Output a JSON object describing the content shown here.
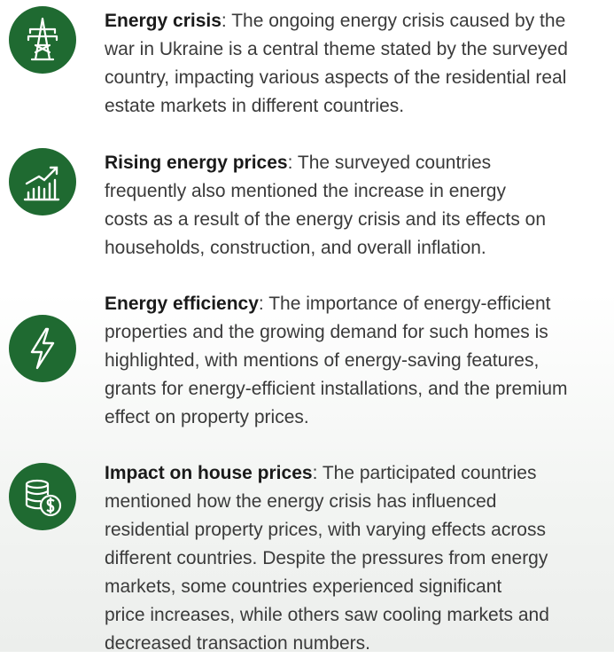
{
  "items": [
    {
      "title": "Energy crisis",
      "lines": [
        ": The ongoing energy crisis caused by the",
        "war in Ukraine is a central theme stated by the surveyed",
        "country, impacting various aspects of the residential real",
        "estate markets in different countries."
      ]
    },
    {
      "title": "Rising energy prices",
      "lines": [
        ": The surveyed countries",
        "frequently also mentioned the increase in energy",
        "costs as a result of the energy crisis and its effects on",
        "households, construction, and overall inflation."
      ]
    },
    {
      "title": "Energy efficiency",
      "lines": [
        ": The importance of energy-efficient",
        "properties and the growing demand for such homes is",
        "highlighted, with mentions of energy-saving features,",
        "grants for energy-efficient installations, and the premium",
        "effect on property prices."
      ]
    },
    {
      "title": "Impact on house prices",
      "lines": [
        ": The participated countries",
        "mentioned how the energy crisis has influenced",
        "residential property prices, with varying effects across",
        "different countries. Despite the pressures from energy",
        "markets, some countries experienced significant",
        "price increases, while others saw cooling markets and",
        "decreased transaction numbers."
      ]
    }
  ]
}
